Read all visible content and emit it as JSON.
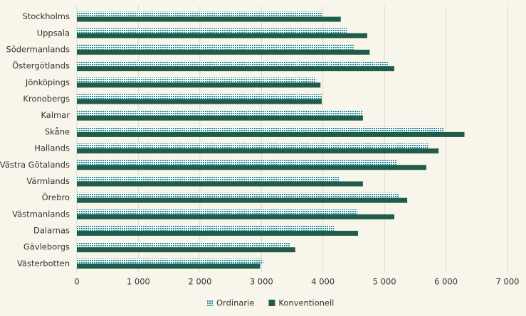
{
  "chart_data": {
    "type": "bar",
    "orientation": "horizontal",
    "categories": [
      "Stockholms",
      "Uppsala",
      "Södermanlands",
      "Östergötlands",
      "Jönköpings",
      "Kronobergs",
      "Kalmar",
      "Skåne",
      "Hallands",
      "Västra Götalands",
      "Värmlands",
      "Örebro",
      "Västmanlands",
      "Dalarnas",
      "Gävleborgs",
      "Västerbotten"
    ],
    "series": [
      {
        "name": "Ordinarie",
        "color": "#2b8f9e",
        "pattern": true,
        "values": [
          3980,
          4390,
          4500,
          5070,
          3890,
          3980,
          4640,
          5960,
          5710,
          5200,
          4260,
          5230,
          4560,
          4180,
          3470,
          3030
        ]
      },
      {
        "name": "Konventionell",
        "color": "#1f5c4a",
        "values": [
          4290,
          4720,
          4760,
          5160,
          3960,
          3980,
          4650,
          6300,
          5880,
          5680,
          4650,
          5370,
          5160,
          4570,
          3550,
          2980
        ]
      }
    ],
    "xlim": [
      0,
      7000
    ],
    "xticks": [
      0,
      {
        "value": 1000,
        "label": "1 000"
      },
      {
        "value": 2000,
        "label": "2 000"
      },
      {
        "value": 3000,
        "label": "3 000"
      },
      {
        "value": 4000,
        "label": "4 000"
      },
      {
        "value": 5000,
        "label": "5 000"
      },
      {
        "value": 6000,
        "label": "6 000"
      },
      {
        "value": 7000,
        "label": "7 000"
      }
    ],
    "grid": true,
    "legend": "bottom"
  }
}
